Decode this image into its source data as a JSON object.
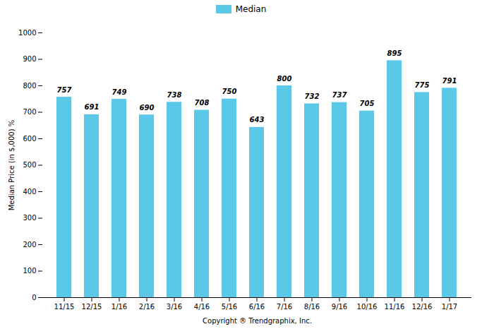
{
  "chart_data": {
    "type": "bar",
    "categories": [
      "11/15",
      "12/15",
      "1/16",
      "2/16",
      "3/16",
      "4/16",
      "5/16",
      "6/16",
      "7/16",
      "8/16",
      "9/16",
      "10/16",
      "11/16",
      "12/16",
      "1/17"
    ],
    "series": [
      {
        "name": "Median",
        "color": "#5BC8E8",
        "values": [
          757,
          691,
          749,
          690,
          738,
          708,
          750,
          643,
          800,
          732,
          737,
          705,
          895,
          775,
          791
        ]
      }
    ],
    "xlabel": "Copyright ® Trendgraphix, Inc.",
    "ylabel": "Median Price (in $,000) %",
    "ylim": [
      0,
      1000
    ],
    "yticks": [
      0,
      100,
      200,
      300,
      400,
      500,
      600,
      700,
      800,
      900,
      1000
    ],
    "grid": false,
    "legend": "top",
    "data_labels": true
  }
}
